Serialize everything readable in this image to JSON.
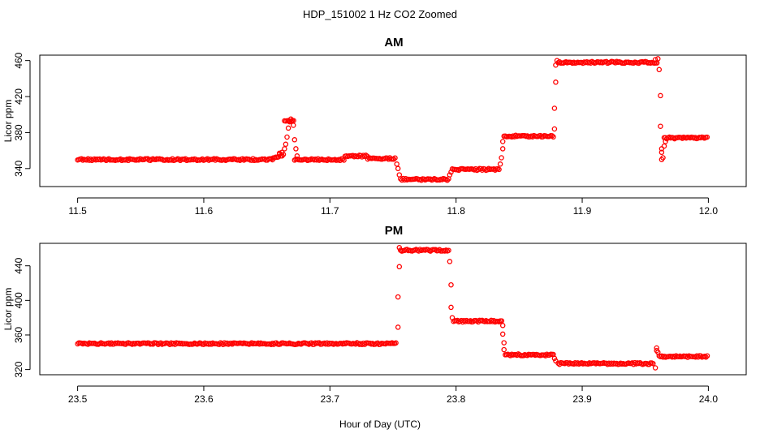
{
  "figure": {
    "title": "HDP_151002  1 Hz CO2 Zoomed",
    "xlabel": "Hour of Day (UTC)"
  },
  "chart_data": [
    {
      "type": "scatter",
      "title": "AM",
      "xlabel": "Hour of Day (UTC)",
      "ylabel": "Licor ppm",
      "xlim": [
        11.47,
        12.03
      ],
      "ylim": [
        320,
        466
      ],
      "xticks": [
        11.5,
        11.6,
        11.7,
        11.8,
        11.9,
        12.0
      ],
      "xtick_labels": [
        "11.5",
        "11.6",
        "11.7",
        "11.8",
        "11.9",
        "12.0"
      ],
      "yticks": [
        340,
        380,
        420,
        460
      ],
      "ytick_labels": [
        "340",
        "380",
        "420",
        "460"
      ],
      "grid": false,
      "marker_color": "#ff0000",
      "series": [
        {
          "segments": [
            {
              "x0": 11.5,
              "x1": 11.655,
              "y": 350
            },
            {
              "x0": 11.655,
              "x1": 11.66,
              "y": 352
            },
            {
              "x0": 11.66,
              "x1": 11.664,
              "y": 355
            },
            {
              "x0": 11.664,
              "x1": 11.672,
              "y": 393
            },
            {
              "x0": 11.672,
              "x1": 11.712,
              "y": 350
            },
            {
              "x0": 11.712,
              "x1": 11.73,
              "y": 354
            },
            {
              "x0": 11.73,
              "x1": 11.752,
              "y": 351
            },
            {
              "x0": 11.756,
              "x1": 11.795,
              "y": 328
            },
            {
              "x0": 11.797,
              "x1": 11.835,
              "y": 339
            },
            {
              "x0": 11.838,
              "x1": 11.878,
              "y": 376
            },
            {
              "x0": 11.881,
              "x1": 11.96,
              "y": 458
            },
            {
              "x0": 11.965,
              "x1": 12.0,
              "y": 374
            }
          ],
          "points": [
            [
              11.66,
              357
            ],
            [
              11.662,
              358
            ],
            [
              11.664,
              362
            ],
            [
              11.665,
              367
            ],
            [
              11.666,
              375
            ],
            [
              11.667,
              385
            ],
            [
              11.668,
              392
            ],
            [
              11.669,
              395
            ],
            [
              11.67,
              393
            ],
            [
              11.671,
              388
            ],
            [
              11.672,
              372
            ],
            [
              11.673,
              362
            ],
            [
              11.674,
              354
            ],
            [
              11.753,
              345
            ],
            [
              11.754,
              340
            ],
            [
              11.755,
              333
            ],
            [
              11.795,
              333
            ],
            [
              11.796,
              336
            ],
            [
              11.835,
              345
            ],
            [
              11.836,
              352
            ],
            [
              11.837,
              362
            ],
            [
              11.837,
              370
            ],
            [
              11.878,
              384
            ],
            [
              11.878,
              407
            ],
            [
              11.879,
              436
            ],
            [
              11.879,
              455
            ],
            [
              11.88,
              460
            ],
            [
              11.958,
              461
            ],
            [
              11.96,
              462
            ],
            [
              11.961,
              450
            ],
            [
              11.962,
              421
            ],
            [
              11.962,
              387
            ],
            [
              11.963,
              362
            ],
            [
              11.963,
              358
            ],
            [
              11.963,
              350
            ],
            [
              11.964,
              352
            ],
            [
              11.965,
              365
            ],
            [
              11.966,
              370
            ]
          ]
        }
      ]
    },
    {
      "type": "scatter",
      "title": "PM",
      "xlabel": "Hour of Day (UTC)",
      "ylabel": "Licor ppm",
      "xlim": [
        23.47,
        24.03
      ],
      "ylim": [
        314,
        466
      ],
      "xticks": [
        23.5,
        23.6,
        23.7,
        23.8,
        23.9,
        24.0
      ],
      "xtick_labels": [
        "23.5",
        "23.6",
        "23.7",
        "23.8",
        "23.9",
        "24.0"
      ],
      "yticks": [
        320,
        360,
        400,
        440
      ],
      "ytick_labels": [
        "320",
        "360",
        "400",
        "440"
      ],
      "grid": false,
      "marker_color": "#ff0000",
      "series": [
        {
          "segments": [
            {
              "x0": 23.5,
              "x1": 23.753,
              "y": 350
            },
            {
              "x0": 23.756,
              "x1": 23.795,
              "y": 458
            },
            {
              "x0": 23.798,
              "x1": 23.837,
              "y": 376
            },
            {
              "x0": 23.839,
              "x1": 23.878,
              "y": 337
            },
            {
              "x0": 23.881,
              "x1": 23.957,
              "y": 327
            },
            {
              "x0": 23.961,
              "x1": 24.0,
              "y": 335
            }
          ],
          "points": [
            [
              23.754,
              369
            ],
            [
              23.754,
              404
            ],
            [
              23.755,
              439
            ],
            [
              23.755,
              461
            ],
            [
              23.756,
              458
            ],
            [
              23.795,
              445
            ],
            [
              23.796,
              418
            ],
            [
              23.796,
              392
            ],
            [
              23.797,
              380
            ],
            [
              23.837,
              371
            ],
            [
              23.837,
              361
            ],
            [
              23.838,
              351
            ],
            [
              23.838,
              343
            ],
            [
              23.878,
              333
            ],
            [
              23.879,
              330
            ],
            [
              23.958,
              322
            ],
            [
              23.959,
              342
            ],
            [
              23.959,
              345
            ],
            [
              23.96,
              340
            ]
          ]
        }
      ]
    }
  ]
}
